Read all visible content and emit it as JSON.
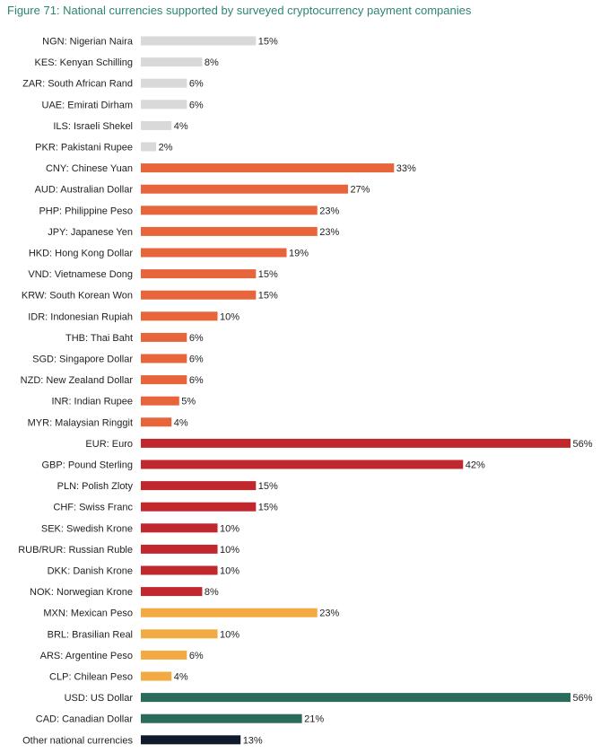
{
  "title": "Figure 71: National currencies supported by surveyed cryptocurrency payment companies",
  "colors": {
    "title": "#2e8571",
    "light_grey": "#d9d9d9",
    "orange": "#e8643a",
    "red": "#c0282e",
    "amber": "#f2aa42",
    "dark_green": "#2a6b5c",
    "navy": "#0f1b2d"
  },
  "chart_data": {
    "type": "bar",
    "orientation": "horizontal",
    "title": "Figure 71: National currencies supported by surveyed cryptocurrency payment companies",
    "xlabel": "",
    "ylabel": "",
    "value_suffix": "%",
    "xlim": [
      0,
      56
    ],
    "grid": false,
    "categories": [
      "NGN: Nigerian Naira",
      "KES: Kenyan Schilling",
      "ZAR: South African Rand",
      "UAE: Emirati Dirham",
      "ILS: Israeli Shekel",
      "PKR: Pakistani Rupee",
      "CNY: Chinese Yuan",
      "AUD: Australian Dollar",
      "PHP: Philippine Peso",
      "JPY: Japanese Yen",
      "HKD: Hong Kong Dollar",
      "VND: Vietnamese Dong",
      "KRW: South Korean Won",
      "IDR: Indonesian Rupiah",
      "THB: Thai Baht",
      "SGD: Singapore Dollar",
      "NZD: New Zealand Dollar",
      "INR: Indian Rupee",
      "MYR: Malaysian Ringgit",
      "EUR: Euro",
      "GBP: Pound Sterling",
      "PLN: Polish Zloty",
      "CHF: Swiss Franc",
      "SEK: Swedish Krone",
      "RUB/RUR: Russian Ruble",
      "DKK: Danish Krone",
      "NOK: Norwegian Krone",
      "MXN: Mexican Peso",
      "BRL: Brasilian Real",
      "ARS: Argentine Peso",
      "CLP: Chilean Peso",
      "USD: US Dollar",
      "CAD: Canadian Dollar",
      "Other national currencies"
    ],
    "values": [
      15,
      8,
      6,
      6,
      4,
      2,
      33,
      27,
      23,
      23,
      19,
      15,
      15,
      10,
      6,
      6,
      6,
      5,
      4,
      56,
      42,
      15,
      15,
      10,
      10,
      10,
      8,
      23,
      10,
      6,
      4,
      56,
      21,
      13
    ],
    "value_labels": [
      "15%",
      "8%",
      "6%",
      "6%",
      "4%",
      "2%",
      "33%",
      "27%",
      "23%",
      "23%",
      "19%",
      "15%",
      "15%",
      "10%",
      "6%",
      "6%",
      "6%",
      "5%",
      "4%",
      "56%",
      "42%",
      "15%",
      "15%",
      "10%",
      "10%",
      "10%",
      "8%",
      "23%",
      "10%",
      "6%",
      "4%",
      "56%",
      "21%",
      "13%"
    ],
    "bar_colors": [
      "#d9d9d9",
      "#d9d9d9",
      "#d9d9d9",
      "#d9d9d9",
      "#d9d9d9",
      "#d9d9d9",
      "#e8643a",
      "#e8643a",
      "#e8643a",
      "#e8643a",
      "#e8643a",
      "#e8643a",
      "#e8643a",
      "#e8643a",
      "#e8643a",
      "#e8643a",
      "#e8643a",
      "#e8643a",
      "#e8643a",
      "#c0282e",
      "#c0282e",
      "#c0282e",
      "#c0282e",
      "#c0282e",
      "#c0282e",
      "#c0282e",
      "#c0282e",
      "#f2aa42",
      "#f2aa42",
      "#f2aa42",
      "#f2aa42",
      "#2a6b5c",
      "#2a6b5c",
      "#0f1b2d"
    ]
  }
}
